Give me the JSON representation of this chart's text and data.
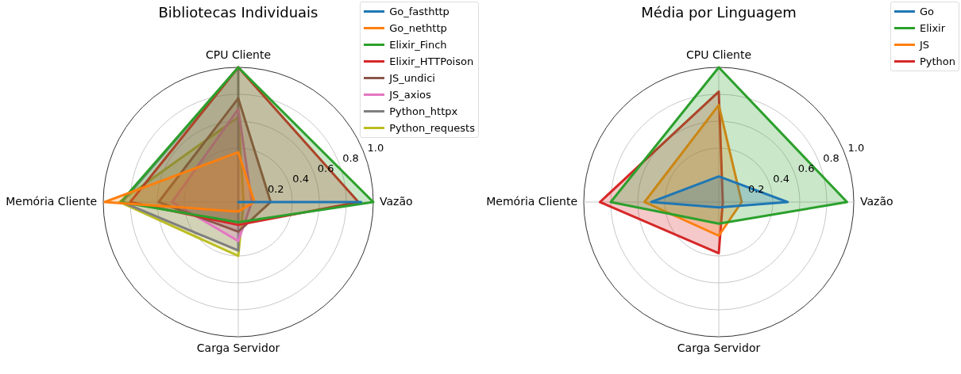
{
  "chart_data": [
    {
      "type": "radar",
      "title": "Bibliotecas Individuais",
      "categories": [
        "CPU Cliente",
        "Vazão",
        "Carga Servidor",
        "Memória Cliente"
      ],
      "ylim": [
        0,
        1
      ],
      "yticks": [
        0.2,
        0.4,
        0.6,
        0.8,
        {
          "value": 1.0,
          "label": "1.0"
        }
      ],
      "grid": true,
      "legend": "top right",
      "series": [
        {
          "name": "Go_fasthttp",
          "color": "#1f77b4",
          "values": [
            0,
            0.91,
            0,
            0
          ]
        },
        {
          "name": "Go_nethttp",
          "color": "#ff7f0e",
          "values": [
            0.37,
            0.12,
            0.07,
            0.99
          ]
        },
        {
          "name": "Elixir_Finch",
          "color": "#2ca02c",
          "values": [
            1.0,
            1.0,
            0.15,
            0.87
          ]
        },
        {
          "name": "Elixir_HTTPoison",
          "color": "#d62728",
          "values": [
            1.0,
            0.89,
            0.17,
            0.8
          ]
        },
        {
          "name": "JS_undici",
          "color": "#8c564b",
          "values": [
            0.77,
            0.24,
            0.22,
            0.59
          ]
        },
        {
          "name": "JS_axios",
          "color": "#e377c2",
          "values": [
            0.69,
            0.1,
            0.29,
            0.49
          ]
        },
        {
          "name": "Python_httpx",
          "color": "#7f7f7f",
          "values": [
            1.0,
            0,
            0.36,
            0.86
          ]
        },
        {
          "name": "Python_requests",
          "color": "#bcbd22",
          "values": [
            0.63,
            0.04,
            0.4,
            0.88
          ]
        }
      ]
    },
    {
      "type": "radar",
      "title": "Média por Linguagem",
      "categories": [
        "CPU Cliente",
        "Vazão",
        "Carga Servidor",
        "Memória Cliente"
      ],
      "ylim": [
        0,
        1
      ],
      "yticks": [
        0.2,
        0.4,
        0.6,
        0.8,
        {
          "value": 1.0,
          "label": "1.0"
        }
      ],
      "grid": true,
      "legend": "top right",
      "series": [
        {
          "name": "Go",
          "color": "#1f77b4",
          "values": [
            0.19,
            0.51,
            0.04,
            0.5
          ]
        },
        {
          "name": "Elixir",
          "color": "#2ca02c",
          "values": [
            1.0,
            0.95,
            0.16,
            0.8
          ]
        },
        {
          "name": "JS",
          "color": "#ff7f0e",
          "values": [
            0.72,
            0.17,
            0.25,
            0.55
          ]
        },
        {
          "name": "Python",
          "color": "#d62728",
          "values": [
            0.82,
            0.03,
            0.38,
            0.88
          ]
        }
      ]
    }
  ]
}
